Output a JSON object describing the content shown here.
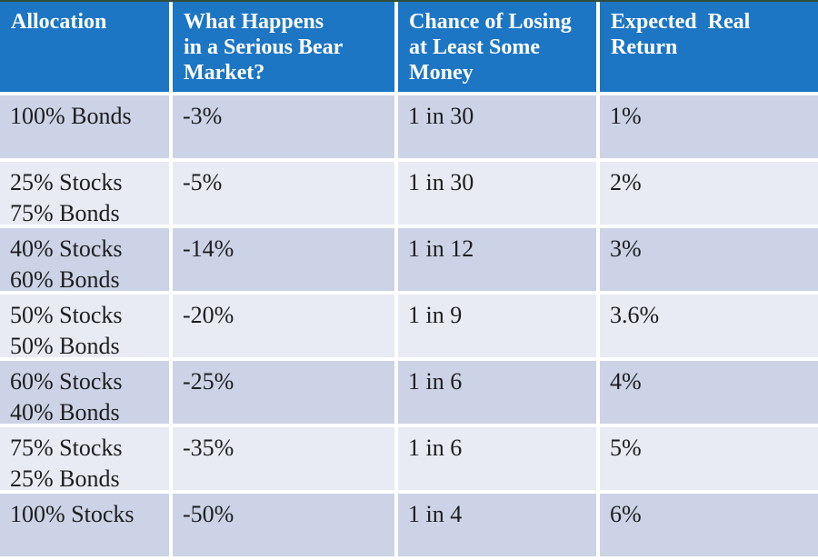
{
  "chart_data": {
    "type": "table",
    "columns": [
      "Allocation",
      "What Happens\nin a Serious Bear\nMarket?",
      "Chance of Losing\nat Least Some\nMoney",
      "Expected  Real\nReturn"
    ],
    "rows": [
      [
        "100% Bonds",
        "-3%",
        "1 in 30",
        "1%"
      ],
      [
        "25% Stocks\n75% Bonds",
        "-5%",
        "1 in 30",
        "2%"
      ],
      [
        "40% Stocks\n60% Bonds",
        "-14%",
        "1 in 12",
        "3%"
      ],
      [
        "50% Stocks\n50% Bonds",
        "-20%",
        "1 in 9",
        "3.6%"
      ],
      [
        "60% Stocks\n40% Bonds",
        "-25%",
        "1 in 6",
        "4%"
      ],
      [
        "75% Stocks\n25% Bonds",
        "-35%",
        "1 in 6",
        "5%"
      ],
      [
        "100% Stocks",
        "-50%",
        "1 in 4",
        "6%"
      ]
    ]
  },
  "colors": {
    "header_bg": "#1d76c4",
    "header_text": "#ffffff",
    "band_dark": "#cdd3e6",
    "band_light": "#e9ebf4",
    "body_text": "#1d1d1f",
    "gridline": "#ffffff",
    "top_edge": "#2f4e41"
  }
}
